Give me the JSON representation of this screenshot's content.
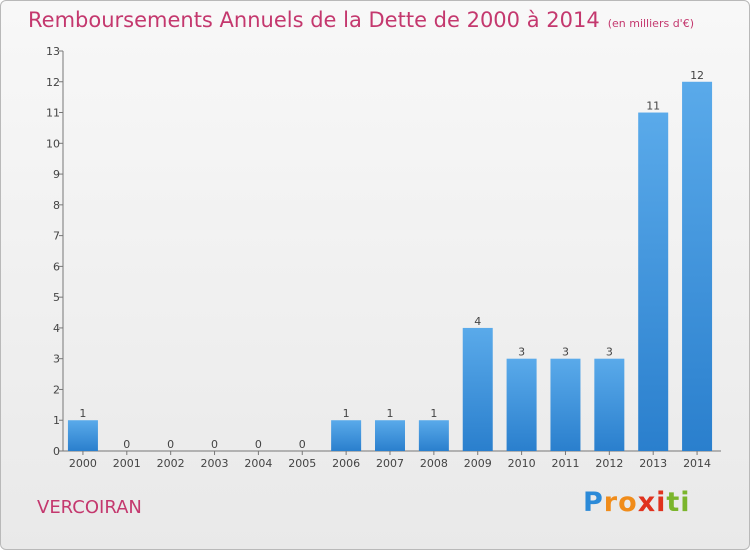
{
  "title": "Remboursements Annuels de la Dette de 2000 à 2014",
  "unit": "(en milliers d'€)",
  "commune": "VERCOIRAN",
  "logo": {
    "letters": [
      "P",
      "r",
      "o",
      "x",
      "i",
      "t",
      "i"
    ],
    "colors": [
      "#2b8ad8",
      "#f08c1a",
      "#f08c1a",
      "#e0321e",
      "#e0321e",
      "#7bb52c",
      "#7bb52c"
    ]
  },
  "colors": {
    "bar_light": "#5aaaea",
    "bar_dark": "#2a7fcd",
    "title": "#c4386e"
  },
  "chart_data": {
    "type": "bar",
    "title": "Remboursements Annuels de la Dette de 2000 à 2014",
    "xlabel": "",
    "ylabel": "",
    "categories": [
      "2000",
      "2001",
      "2002",
      "2003",
      "2004",
      "2005",
      "2006",
      "2007",
      "2008",
      "2009",
      "2010",
      "2011",
      "2012",
      "2013",
      "2014"
    ],
    "values": [
      1,
      0,
      0,
      0,
      0,
      0,
      1,
      1,
      1,
      4,
      3,
      3,
      3,
      11,
      12
    ],
    "ylim": [
      0,
      13
    ],
    "yticks": [
      0,
      1,
      2,
      3,
      4,
      5,
      6,
      7,
      8,
      9,
      10,
      11,
      12,
      13
    ],
    "grid": false,
    "data_labels": true
  }
}
